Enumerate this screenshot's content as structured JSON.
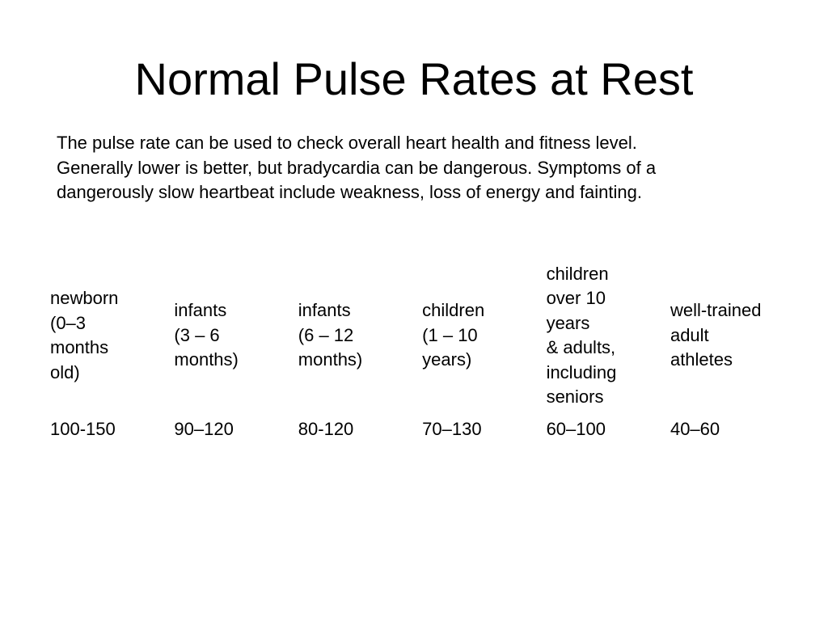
{
  "slide": {
    "title": "Normal Pulse Rates at Rest",
    "intro_lines": [
      "The pulse rate can be used to check overall heart health and fitness level.",
      "Generally lower is better, but bradycardia can be dangerous. Symptoms of a",
      "dangerously slow heartbeat include weakness, loss of energy and fainting."
    ]
  },
  "table": {
    "headers": [
      [
        "newborn",
        "(0–3",
        "months",
        "old)"
      ],
      [
        "infants",
        "(3 – 6",
        "months)"
      ],
      [
        "infants",
        "(6 – 12",
        "months)"
      ],
      [
        "children",
        "(1 – 10",
        "years)"
      ],
      [
        "children",
        "over 10",
        "years",
        "& adults,",
        "including",
        "seniors"
      ],
      [
        "well-trained",
        "adult",
        "athletes"
      ]
    ],
    "values": [
      "100-150",
      "90–120",
      "80-120",
      "70–130",
      "60–100",
      "40–60"
    ]
  }
}
